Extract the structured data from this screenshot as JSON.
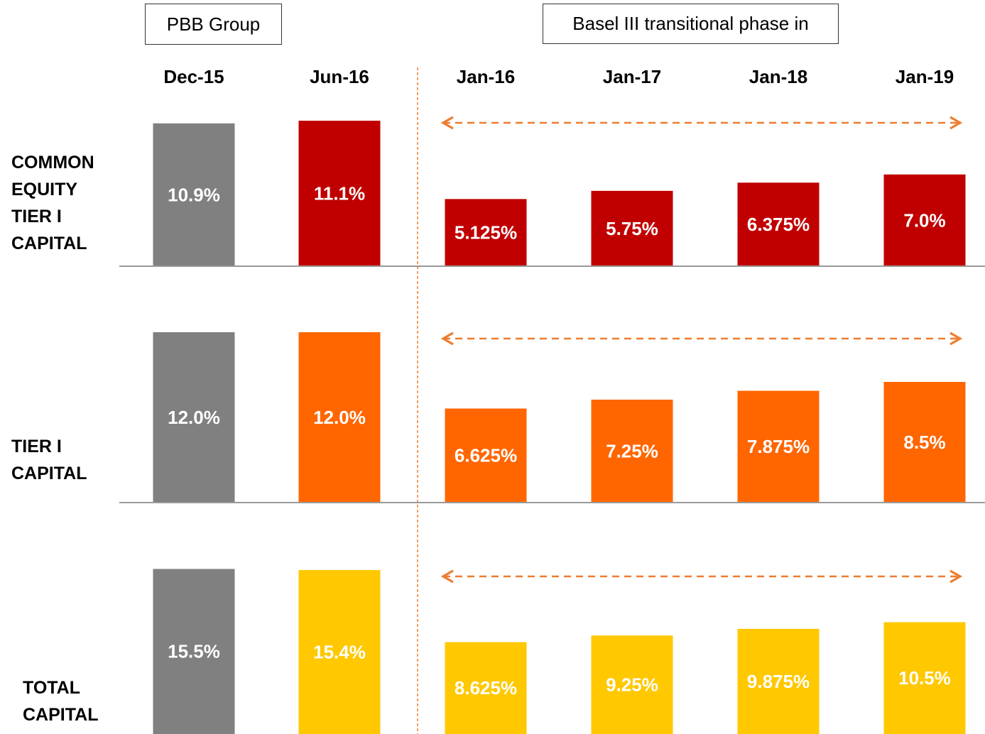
{
  "header": {
    "left_box": "PBB Group",
    "right_box": "Basel III transitional phase in"
  },
  "chart_data": {
    "type": "bar",
    "categories": [
      "Dec-15",
      "Jun-16",
      "Jan-16",
      "Jan-17",
      "Jan-18",
      "Jan-19"
    ],
    "series": [
      {
        "name": "COMMON EQUITY TIER I CAPITAL",
        "colors": [
          "#808080",
          "#c00000",
          "#c00000",
          "#c00000",
          "#c00000",
          "#c00000"
        ],
        "values": [
          10.9,
          11.1,
          5.125,
          5.75,
          6.375,
          7.0
        ],
        "value_labels": [
          "10.9%",
          "11.1%",
          "5.125%",
          "5.75%",
          "6.375%",
          "7.0%"
        ],
        "ylim": [
          0,
          13
        ]
      },
      {
        "name": "TIER I CAPITAL",
        "colors": [
          "#808080",
          "#ff6600",
          "#ff6600",
          "#ff6600",
          "#ff6600",
          "#ff6600"
        ],
        "values": [
          12.0,
          12.0,
          6.625,
          7.25,
          7.875,
          8.5
        ],
        "value_labels": [
          "12.0%",
          "12.0%",
          "6.625%",
          "7.25%",
          "7.875%",
          "8.5%"
        ],
        "ylim": [
          0,
          12
        ]
      },
      {
        "name": "TOTAL CAPITAL",
        "colors": [
          "#808080",
          "#ffc800",
          "#ffc800",
          "#ffc800",
          "#ffc800",
          "#ffc800"
        ],
        "values": [
          15.5,
          15.4,
          8.625,
          9.25,
          9.875,
          10.5
        ],
        "value_labels": [
          "15.5%",
          "15.4%",
          "8.625%",
          "9.25%",
          "9.875%",
          "10.5%"
        ],
        "ylim": [
          0,
          16
        ]
      }
    ]
  }
}
